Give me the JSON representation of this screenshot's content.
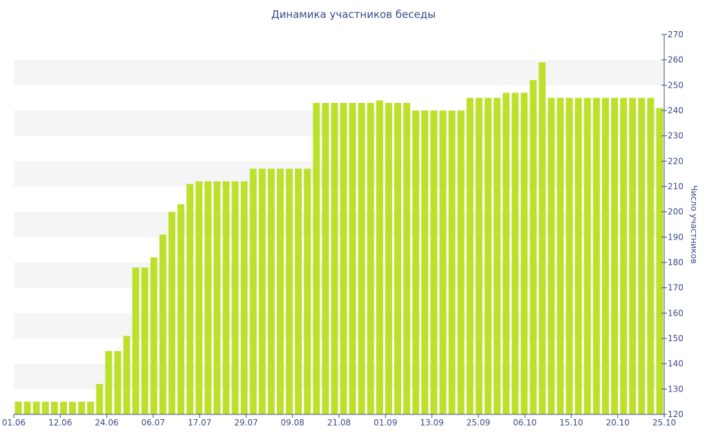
{
  "chart_data": {
    "type": "bar",
    "title": "Динамика участников беседы",
    "xlabel": "",
    "ylabel": "Число участников",
    "ylim": [
      120,
      270
    ],
    "y_ticks": [
      120,
      130,
      140,
      150,
      160,
      170,
      180,
      190,
      200,
      210,
      220,
      230,
      240,
      250,
      260,
      270
    ],
    "y_axis_position": "right",
    "x_tick_labels": [
      "01.06",
      "12.06",
      "24.06",
      "06.07",
      "17.07",
      "29.07",
      "09.08",
      "21.08",
      "01.09",
      "13.09",
      "25.09",
      "06.10",
      "15.10",
      "20.10",
      "25.10"
    ],
    "bar_color": "#bde02b",
    "band_color": "#f5f5f5",
    "axis_color": "#3b4a8a",
    "series": [
      {
        "values": [
          125,
          125,
          125,
          125,
          125,
          125,
          125,
          125,
          125,
          132,
          145,
          145,
          151,
          178,
          178,
          182,
          191,
          200,
          203,
          211,
          212,
          212,
          212,
          212,
          212,
          212,
          217,
          217,
          217,
          217,
          217,
          217,
          217,
          243,
          243,
          243,
          243,
          243,
          243,
          243,
          244,
          243,
          243,
          243,
          240,
          240,
          240,
          240,
          240,
          240,
          245,
          245,
          245,
          245,
          247,
          247,
          247,
          252,
          259,
          245,
          245,
          245,
          245,
          245,
          245,
          245,
          245,
          245,
          245,
          245,
          245,
          241
        ]
      }
    ]
  }
}
